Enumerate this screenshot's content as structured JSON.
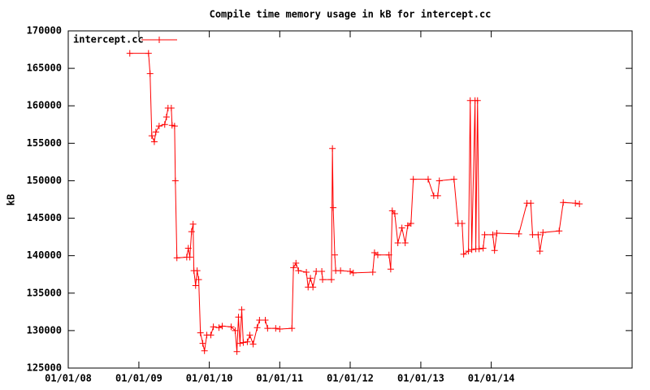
{
  "chart_data": {
    "type": "line",
    "title": "Compile time memory usage in kB for intercept.cc",
    "ylabel": "kB",
    "legend": "top-left",
    "marker": "plus",
    "grid": false,
    "xlim": [
      "2008-01-01",
      "2016-01-01"
    ],
    "xticks": [
      {
        "value": "2008-01-01",
        "label": "01/01/08"
      },
      {
        "value": "2009-01-01",
        "label": "01/01/09"
      },
      {
        "value": "2010-01-01",
        "label": "01/01/10"
      },
      {
        "value": "2011-01-01",
        "label": "01/01/11"
      },
      {
        "value": "2012-01-01",
        "label": "01/01/12"
      },
      {
        "value": "2013-01-01",
        "label": "01/01/13"
      },
      {
        "value": "2014-01-01",
        "label": "01/01/14"
      }
    ],
    "ylim": [
      125000,
      170000
    ],
    "yticks": [
      125000,
      130000,
      135000,
      140000,
      145000,
      150000,
      155000,
      160000,
      165000,
      170000
    ],
    "x": [
      "2008-11-15",
      "2009-02-20",
      "2009-02-28",
      "2009-03-09",
      "2009-03-22",
      "2009-03-30",
      "2009-04-16",
      "2009-05-15",
      "2009-05-24",
      "2009-06-01",
      "2009-06-18",
      "2009-06-22",
      "2009-07-05",
      "2009-07-09",
      "2009-07-17",
      "2009-09-06",
      "2009-09-14",
      "2009-09-22",
      "2009-10-01",
      "2009-10-09",
      "2009-10-13",
      "2009-10-22",
      "2009-10-30",
      "2009-11-07",
      "2009-11-16",
      "2009-11-28",
      "2009-12-07",
      "2009-12-19",
      "2010-01-09",
      "2010-01-22",
      "2010-02-20",
      "2010-03-09",
      "2010-04-24",
      "2010-05-15",
      "2010-05-24",
      "2010-06-01",
      "2010-06-09",
      "2010-06-18",
      "2010-06-26",
      "2010-07-17",
      "2010-07-30",
      "2010-08-16",
      "2010-09-06",
      "2010-09-18",
      "2010-10-18",
      "2010-10-30",
      "2010-12-11",
      "2011-01-01",
      "2011-03-05",
      "2011-03-13",
      "2011-03-26",
      "2011-04-08",
      "2011-05-19",
      "2011-05-28",
      "2011-06-09",
      "2011-06-22",
      "2011-07-09",
      "2011-08-07",
      "2011-08-11",
      "2011-09-26",
      "2011-10-01",
      "2011-10-05",
      "2011-10-13",
      "2011-10-18",
      "2011-11-12",
      "2012-01-01",
      "2012-01-17",
      "2012-04-27",
      "2012-05-06",
      "2012-05-23",
      "2012-07-20",
      "2012-07-29",
      "2012-08-06",
      "2012-08-19",
      "2012-09-04",
      "2012-09-25",
      "2012-10-12",
      "2012-10-25",
      "2012-11-11",
      "2012-11-23",
      "2013-02-08",
      "2013-03-09",
      "2013-03-30",
      "2013-04-07",
      "2013-06-22",
      "2013-07-13",
      "2013-08-03",
      "2013-08-11",
      "2013-09-05",
      "2013-09-14",
      "2013-09-22",
      "2013-10-09",
      "2013-10-13",
      "2013-10-22",
      "2013-10-30",
      "2013-11-20",
      "2013-11-28",
      "2014-01-09",
      "2014-01-18",
      "2014-01-30",
      "2014-05-24",
      "2014-07-05",
      "2014-07-25",
      "2014-08-03",
      "2014-09-01",
      "2014-09-10",
      "2014-09-26",
      "2014-12-19",
      "2015-01-09",
      "2015-03-13",
      "2015-04-03"
    ],
    "series": [
      {
        "name": "intercept.cc",
        "color": "#ff0000",
        "values": [
          167000,
          167000,
          164300,
          156000,
          155200,
          156500,
          157300,
          157500,
          158500,
          159700,
          159700,
          157400,
          157300,
          150000,
          139700,
          139800,
          141000,
          139800,
          143200,
          144200,
          138000,
          136000,
          138000,
          136800,
          129700,
          128300,
          127300,
          129400,
          129400,
          130500,
          130400,
          130600,
          130500,
          130000,
          127200,
          131800,
          128300,
          132800,
          128400,
          128500,
          129400,
          128200,
          130400,
          131400,
          131400,
          130300,
          130300,
          130200,
          130300,
          138400,
          139000,
          138000,
          137800,
          135800,
          137000,
          135800,
          137900,
          137900,
          136800,
          136800,
          154300,
          146400,
          140100,
          138000,
          138000,
          137900,
          137700,
          137800,
          140400,
          140100,
          140100,
          138200,
          146000,
          145600,
          141700,
          143700,
          141700,
          144000,
          144300,
          150200,
          150200,
          148000,
          148000,
          150000,
          150200,
          144300,
          144300,
          140200,
          140600,
          160700,
          140800,
          160700,
          140900,
          160700,
          140900,
          141000,
          142800,
          142800,
          140700,
          143000,
          142900,
          147000,
          147000,
          142800,
          142800,
          140600,
          143100,
          143300,
          147100,
          147000,
          146900
        ]
      }
    ]
  }
}
